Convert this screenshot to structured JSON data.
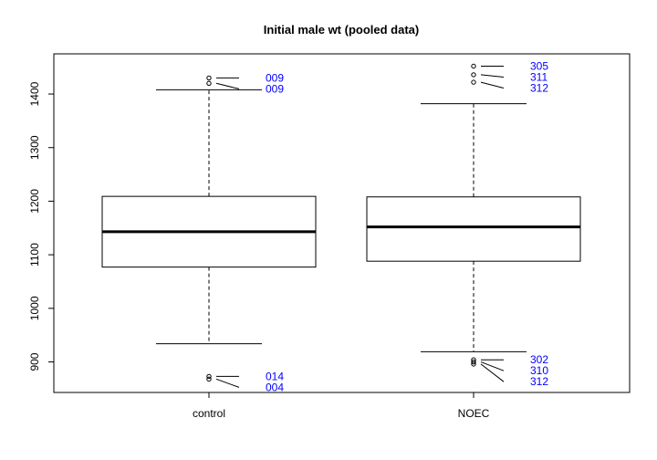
{
  "chart_data": {
    "type": "boxplot",
    "title": "Initial male wt (pooled data)",
    "xlabel": "",
    "ylabel": "",
    "ylim": [
      843,
      1475
    ],
    "yticks": [
      900,
      1000,
      1100,
      1200,
      1300,
      1400
    ],
    "grid": false,
    "label_color": "#0000ff",
    "categories": [
      "control",
      "NOEC"
    ],
    "boxes": [
      {
        "name": "control",
        "whisker_low": 934,
        "q1": 1077,
        "median": 1143,
        "q3": 1209,
        "whisker_high": 1408,
        "outliers": [
          {
            "value": 1430,
            "label": "009"
          },
          {
            "value": 1420,
            "label": "009"
          },
          {
            "value": 873,
            "label": "014"
          },
          {
            "value": 868,
            "label": "004"
          }
        ]
      },
      {
        "name": "NOEC",
        "whisker_low": 919,
        "q1": 1088,
        "median": 1152,
        "q3": 1208,
        "whisker_high": 1382,
        "outliers": [
          {
            "value": 1452,
            "label": "305"
          },
          {
            "value": 1436,
            "label": "311"
          },
          {
            "value": 1422,
            "label": "312"
          },
          {
            "value": 904,
            "label": "302"
          },
          {
            "value": 900,
            "label": "310"
          },
          {
            "value": 896,
            "label": "312"
          }
        ]
      }
    ]
  }
}
